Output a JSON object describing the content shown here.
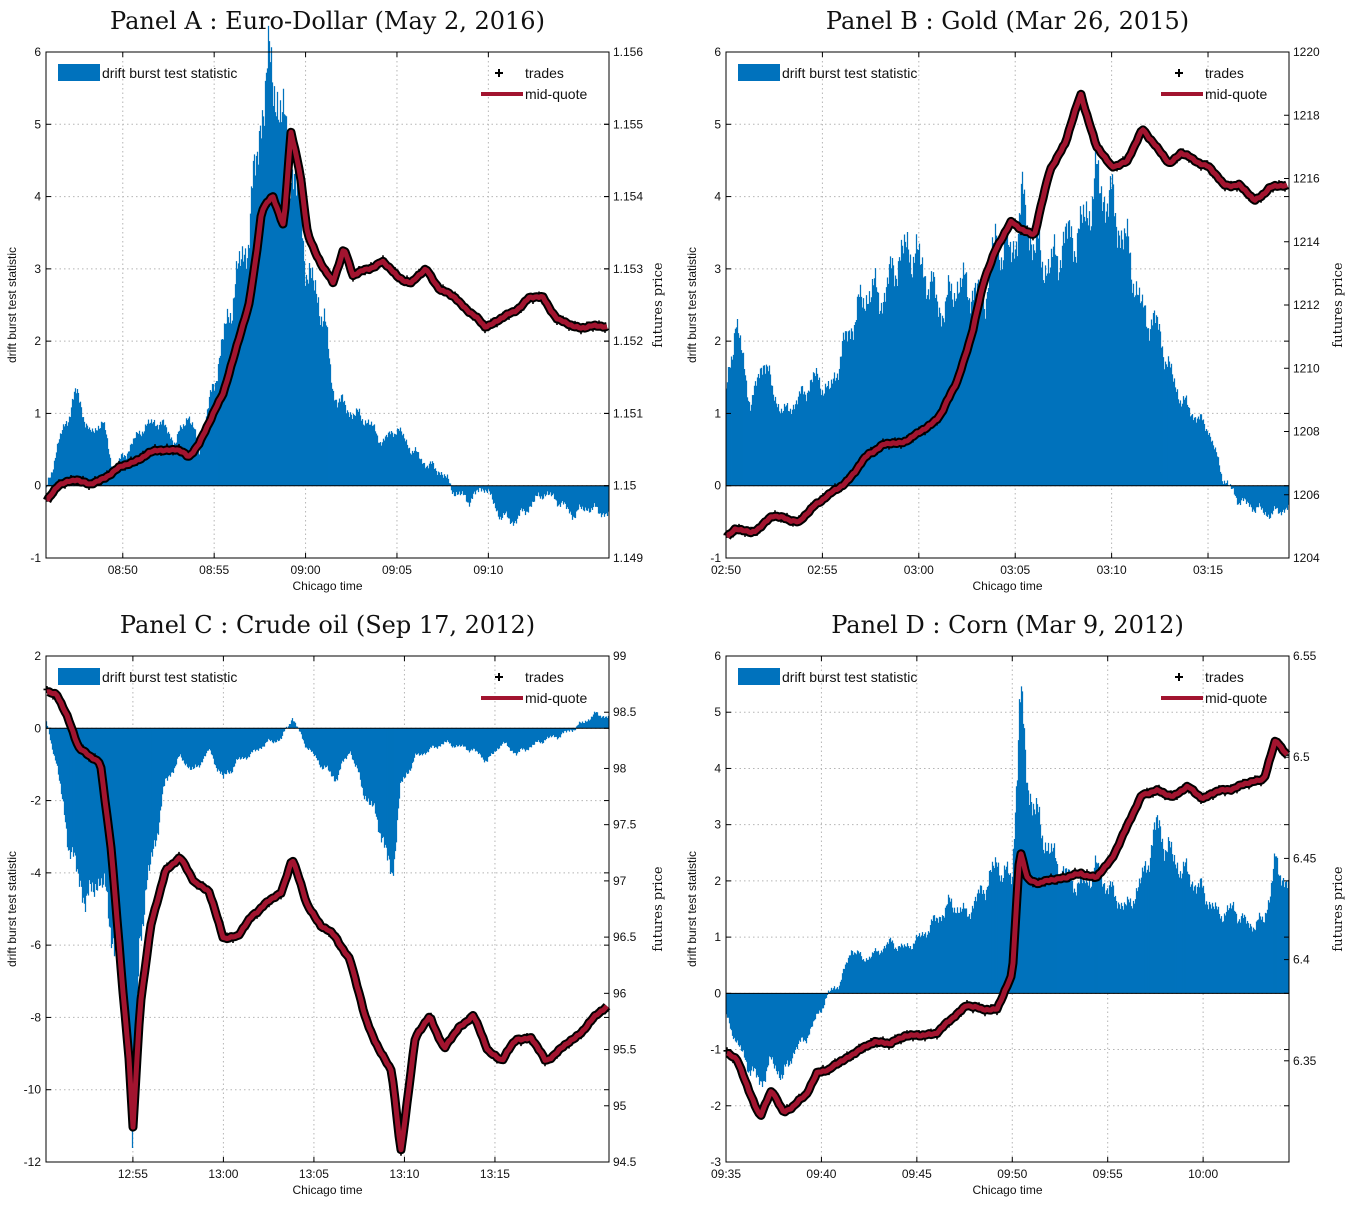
{
  "colors": {
    "bar": "#0072BD",
    "midquote": "#A2142F",
    "trades": "#000000",
    "grid": "#b5b5b5"
  },
  "chart_data": [
    {
      "type": "bar+line",
      "title": "Panel A : Euro-Dollar (May 2, 2016)",
      "xlabel": "Chicago time",
      "ylabel": "drift burst test statistic",
      "ylabel_right": "futures price",
      "x_ticks": [
        "08:50",
        "08:55",
        "09:00",
        "09:05",
        "09:10"
      ],
      "x_tick_minutes": [
        10,
        15,
        20,
        25,
        30
      ],
      "x_range_minutes": [
        5.8,
        36.6
      ],
      "ylim": [
        -1,
        6
      ],
      "y_ticks": [
        "-1",
        "0",
        "1",
        "2",
        "3",
        "4",
        "5",
        "6"
      ],
      "ylim_right": [
        1.149,
        1.156
      ],
      "y_ticks_right": [
        "1.149",
        "1.15",
        "1.151",
        "1.152",
        "1.153",
        "1.154",
        "1.155",
        "1.156"
      ],
      "legend": {
        "bar": "drift burst test statistic",
        "trades": "trades",
        "midquote": "mid-quote"
      },
      "stat_series": {
        "x": [
          5.8,
          6.5,
          7.5,
          8.2,
          8.9,
          9.5,
          10.3,
          11.1,
          12.0,
          12.9,
          13.6,
          14.2,
          14.8,
          15.5,
          16.1,
          16.9,
          17.3,
          17.6,
          18.2,
          18.8,
          19.2,
          19.7,
          20.1,
          20.6,
          21.0,
          21.5,
          22.1,
          22.6,
          23.4,
          24.2,
          25.0,
          25.8,
          26.6,
          27.4,
          28.2,
          29.0,
          29.8,
          30.6,
          31.4,
          32.2,
          33.0,
          33.8,
          34.6,
          35.4,
          36.6
        ],
        "values": [
          -0.1,
          0.6,
          1.3,
          0.7,
          0.9,
          0.2,
          0.5,
          0.8,
          0.9,
          0.6,
          1.0,
          0.5,
          1.2,
          2.0,
          2.7,
          3.5,
          4.4,
          5.3,
          5.8,
          4.9,
          4.5,
          3.8,
          3.0,
          2.6,
          2.4,
          1.3,
          1.1,
          1.0,
          0.9,
          0.6,
          0.8,
          0.5,
          0.3,
          0.2,
          -0.1,
          -0.2,
          0.0,
          -0.4,
          -0.5,
          -0.3,
          -0.1,
          -0.2,
          -0.4,
          -0.3,
          -0.4
        ]
      },
      "price_series": {
        "x": [
          5.8,
          6.5,
          7.5,
          8.2,
          8.9,
          9.5,
          10.3,
          11.1,
          12.0,
          12.9,
          13.6,
          14.2,
          14.8,
          15.5,
          16.1,
          16.9,
          17.3,
          17.6,
          18.2,
          18.8,
          19.2,
          19.7,
          20.1,
          20.6,
          21.0,
          21.5,
          22.1,
          22.6,
          23.4,
          24.2,
          25.0,
          25.8,
          26.6,
          27.4,
          28.2,
          29.0,
          29.8,
          30.6,
          31.4,
          32.2,
          33.0,
          33.8,
          34.6,
          35.4,
          36.6
        ],
        "values": [
          1.1498,
          1.15,
          1.1501,
          1.15,
          1.1501,
          1.1502,
          1.1503,
          1.1504,
          1.1505,
          1.1505,
          1.1504,
          1.1506,
          1.1509,
          1.1513,
          1.1518,
          1.1525,
          1.1532,
          1.1538,
          1.154,
          1.1536,
          1.1549,
          1.1543,
          1.1535,
          1.1532,
          1.153,
          1.1528,
          1.1533,
          1.1529,
          1.153,
          1.1531,
          1.1529,
          1.1528,
          1.153,
          1.1527,
          1.1526,
          1.1524,
          1.1522,
          1.1523,
          1.1524,
          1.1526,
          1.1526,
          1.1523,
          1.1522,
          1.1522,
          1.1522
        ]
      }
    },
    {
      "type": "bar+line",
      "title": "Panel B : Gold (Mar 26, 2015)",
      "xlabel": "Chicago time",
      "ylabel": "drift burst test statistic",
      "ylabel_right": "futures price",
      "x_ticks": [
        "02:50",
        "02:55",
        "03:00",
        "03:05",
        "03:10",
        "03:15"
      ],
      "x_tick_minutes": [
        0,
        5,
        10,
        15,
        20,
        25
      ],
      "x_range_minutes": [
        0,
        29.2
      ],
      "ylim": [
        -1,
        6
      ],
      "y_ticks": [
        "-1",
        "0",
        "1",
        "2",
        "3",
        "4",
        "5",
        "6"
      ],
      "ylim_right": [
        1204,
        1220
      ],
      "y_ticks_right": [
        "1204",
        "1206",
        "1208",
        "1210",
        "1212",
        "1214",
        "1216",
        "1218",
        "1220"
      ],
      "legend": {
        "bar": "drift burst test statistic",
        "trades": "trades",
        "midquote": "mid-quote"
      },
      "stat_series": {
        "x": [
          0.0,
          0.5,
          1.3,
          2.0,
          2.4,
          3.0,
          3.8,
          4.6,
          5.4,
          6.2,
          6.8,
          7.4,
          8.2,
          8.8,
          9.6,
          10.4,
          11.2,
          12.0,
          12.8,
          13.4,
          14.0,
          14.8,
          15.4,
          16.0,
          16.8,
          17.6,
          18.4,
          19.2,
          20.0,
          20.8,
          21.6,
          22.4,
          23.0,
          23.6,
          24.2,
          25.0,
          25.8,
          26.6,
          27.4,
          28.2,
          29.2
        ],
        "values": [
          1.2,
          2.3,
          1.1,
          1.8,
          1.3,
          1.0,
          1.2,
          1.5,
          1.3,
          2.0,
          2.4,
          2.7,
          2.6,
          3.1,
          3.3,
          2.9,
          2.4,
          2.8,
          2.7,
          2.6,
          3.4,
          3.2,
          3.9,
          3.3,
          3.0,
          3.4,
          3.5,
          4.2,
          3.9,
          3.3,
          2.4,
          2.2,
          1.6,
          1.2,
          1.0,
          0.8,
          0.1,
          -0.2,
          -0.3,
          -0.4,
          -0.3
        ]
      },
      "price_series": {
        "x": [
          0.0,
          0.5,
          1.3,
          2.0,
          2.4,
          3.0,
          3.8,
          4.6,
          5.4,
          6.2,
          6.8,
          7.4,
          8.2,
          8.8,
          9.6,
          10.4,
          11.2,
          12.0,
          12.8,
          13.4,
          14.0,
          14.8,
          15.4,
          16.0,
          16.8,
          17.6,
          18.4,
          19.2,
          20.0,
          20.8,
          21.6,
          22.4,
          23.0,
          23.6,
          24.2,
          25.0,
          25.8,
          26.6,
          27.4,
          28.2,
          29.2
        ],
        "values": [
          1204.7,
          1204.9,
          1204.8,
          1205.1,
          1205.3,
          1205.3,
          1205.1,
          1205.7,
          1206.0,
          1206.4,
          1206.8,
          1207.3,
          1207.6,
          1207.6,
          1207.8,
          1208.1,
          1208.6,
          1209.6,
          1211.2,
          1212.8,
          1213.8,
          1214.6,
          1214.4,
          1214.2,
          1216.3,
          1217.1,
          1218.7,
          1217.0,
          1216.4,
          1216.5,
          1217.6,
          1216.9,
          1216.5,
          1216.8,
          1216.6,
          1216.4,
          1215.8,
          1215.8,
          1215.3,
          1215.7,
          1215.8
        ]
      }
    },
    {
      "type": "bar+line",
      "title": "Panel C : Crude oil (Sep 17, 2012)",
      "xlabel": "Chicago time",
      "ylabel": "drift burst test statistic",
      "ylabel_right": "futures price",
      "x_ticks": [
        "12:55",
        "13:00",
        "13:05",
        "13:10",
        "13:15"
      ],
      "x_tick_minutes": [
        10,
        15,
        20,
        25,
        30
      ],
      "x_range_minutes": [
        5.2,
        36.3
      ],
      "ylim": [
        -12,
        2
      ],
      "y_ticks": [
        "-12",
        "-10",
        "-8",
        "-6",
        "-4",
        "-2",
        "0",
        "2"
      ],
      "ylim_right": [
        94.5,
        99
      ],
      "y_ticks_right": [
        "94.5",
        "95",
        "95.5",
        "96",
        "96.5",
        "97",
        "97.5",
        "98",
        "98.5",
        "99"
      ],
      "legend": {
        "bar": "drift burst test statistic",
        "trades": "trades",
        "midquote": "mid-quote"
      },
      "stat_series": {
        "x": [
          5.2,
          5.8,
          6.4,
          7.0,
          7.6,
          8.2,
          8.8,
          9.4,
          9.8,
          10.0,
          10.4,
          11.0,
          11.8,
          12.6,
          13.4,
          14.2,
          15.0,
          15.8,
          16.6,
          17.4,
          18.2,
          18.8,
          19.6,
          20.4,
          21.2,
          22.0,
          22.8,
          23.6,
          24.3,
          24.8,
          25.6,
          26.4,
          27.2,
          28.0,
          28.8,
          29.6,
          30.4,
          31.2,
          32.0,
          32.8,
          33.6,
          34.4,
          35.0,
          35.6,
          36.3
        ],
        "values": [
          0.2,
          -1.0,
          -3.0,
          -4.2,
          -4.8,
          -4.0,
          -5.5,
          -6.8,
          -8.3,
          -11.8,
          -5.5,
          -3.8,
          -1.5,
          -0.8,
          -1.2,
          -0.6,
          -1.4,
          -0.9,
          -0.7,
          -0.4,
          -0.3,
          0.3,
          -0.5,
          -1.0,
          -1.4,
          -0.6,
          -1.8,
          -2.6,
          -4.2,
          -1.6,
          -0.8,
          -0.6,
          -0.4,
          -0.5,
          -0.6,
          -0.9,
          -0.4,
          -0.7,
          -0.5,
          -0.3,
          -0.2,
          0.0,
          0.2,
          0.4,
          0.3
        ]
      },
      "price_series": {
        "x": [
          5.2,
          5.8,
          6.4,
          7.0,
          7.6,
          8.2,
          8.8,
          9.4,
          9.8,
          10.0,
          10.4,
          11.0,
          11.8,
          12.6,
          13.4,
          14.2,
          15.0,
          15.8,
          16.6,
          17.4,
          18.2,
          18.8,
          19.6,
          20.4,
          21.2,
          22.0,
          22.8,
          23.6,
          24.3,
          24.8,
          25.6,
          26.4,
          27.2,
          28.0,
          28.8,
          29.6,
          30.4,
          31.2,
          32.0,
          32.8,
          33.6,
          34.4,
          35.0,
          35.6,
          36.3
        ],
        "values": [
          98.7,
          98.65,
          98.45,
          98.2,
          98.1,
          98.05,
          97.3,
          96.1,
          95.4,
          94.8,
          95.9,
          96.6,
          97.1,
          97.2,
          97.0,
          96.9,
          96.5,
          96.5,
          96.7,
          96.8,
          96.9,
          97.2,
          96.8,
          96.6,
          96.5,
          96.3,
          95.8,
          95.5,
          95.3,
          94.6,
          95.6,
          95.8,
          95.5,
          95.7,
          95.8,
          95.5,
          95.4,
          95.6,
          95.6,
          95.4,
          95.5,
          95.6,
          95.7,
          95.8,
          95.9
        ]
      }
    },
    {
      "type": "bar+line",
      "title": "Panel D : Corn (Mar 9, 2012)",
      "xlabel": "Chicago time",
      "ylabel": "drift burst test statistic",
      "ylabel_right": "futures price",
      "x_ticks": [
        "09:35",
        "09:40",
        "09:45",
        "09:50",
        "09:55",
        "10:00"
      ],
      "x_tick_minutes": [
        0,
        5,
        10,
        15,
        20,
        25
      ],
      "x_range_minutes": [
        0,
        29.5
      ],
      "ylim": [
        -3,
        6
      ],
      "y_ticks": [
        "-3",
        "-2",
        "-1",
        "0",
        "1",
        "2",
        "3",
        "4",
        "5",
        "6"
      ],
      "ylim_right": [
        6.3,
        6.55
      ],
      "y_ticks_right": [
        "6.35",
        "6.4",
        "6.45",
        "6.5",
        "6.55"
      ],
      "legend": {
        "bar": "drift burst test statistic",
        "trades": "trades",
        "midquote": "mid-quote"
      },
      "stat_series": {
        "x": [
          0.0,
          0.6,
          1.2,
          1.8,
          2.4,
          3.0,
          3.6,
          4.2,
          4.8,
          5.4,
          6.0,
          6.6,
          7.2,
          7.8,
          8.6,
          9.4,
          10.2,
          11.0,
          11.8,
          12.6,
          13.4,
          14.2,
          15.0,
          15.4,
          15.8,
          16.4,
          17.0,
          17.8,
          18.6,
          19.4,
          20.2,
          21.0,
          21.8,
          22.6,
          23.4,
          24.2,
          25.0,
          25.8,
          26.6,
          27.4,
          28.2,
          28.8,
          29.5
        ],
        "values": [
          -0.4,
          -0.9,
          -1.3,
          -1.6,
          -1.2,
          -1.5,
          -1.0,
          -0.8,
          -0.4,
          0.0,
          0.2,
          0.8,
          0.6,
          0.7,
          0.9,
          0.8,
          1.0,
          1.3,
          1.6,
          1.4,
          1.8,
          2.3,
          2.0,
          5.3,
          3.8,
          3.0,
          2.5,
          2.1,
          1.9,
          2.2,
          1.8,
          1.5,
          2.0,
          3.0,
          2.4,
          2.1,
          1.8,
          1.4,
          1.5,
          1.2,
          1.3,
          2.3,
          1.9
        ]
      },
      "price_series": {
        "x": [
          0.0,
          0.6,
          1.2,
          1.8,
          2.4,
          3.0,
          3.6,
          4.2,
          4.8,
          5.4,
          6.0,
          6.6,
          7.2,
          7.8,
          8.6,
          9.4,
          10.2,
          11.0,
          11.8,
          12.6,
          13.4,
          14.2,
          15.0,
          15.4,
          15.8,
          16.4,
          17.0,
          17.8,
          18.6,
          19.4,
          20.2,
          21.0,
          21.8,
          22.6,
          23.4,
          24.2,
          25.0,
          25.8,
          26.6,
          27.4,
          28.2,
          28.8,
          29.5
        ],
        "values": [
          6.355,
          6.35,
          6.335,
          6.323,
          6.335,
          6.325,
          6.328,
          6.333,
          6.345,
          6.345,
          6.35,
          6.353,
          6.356,
          6.36,
          6.358,
          6.363,
          6.362,
          6.364,
          6.37,
          6.378,
          6.375,
          6.376,
          6.392,
          6.455,
          6.44,
          6.437,
          6.44,
          6.44,
          6.443,
          6.44,
          6.45,
          6.465,
          6.482,
          6.483,
          6.481,
          6.485,
          6.48,
          6.483,
          6.485,
          6.487,
          6.49,
          6.508,
          6.5
        ]
      }
    }
  ]
}
